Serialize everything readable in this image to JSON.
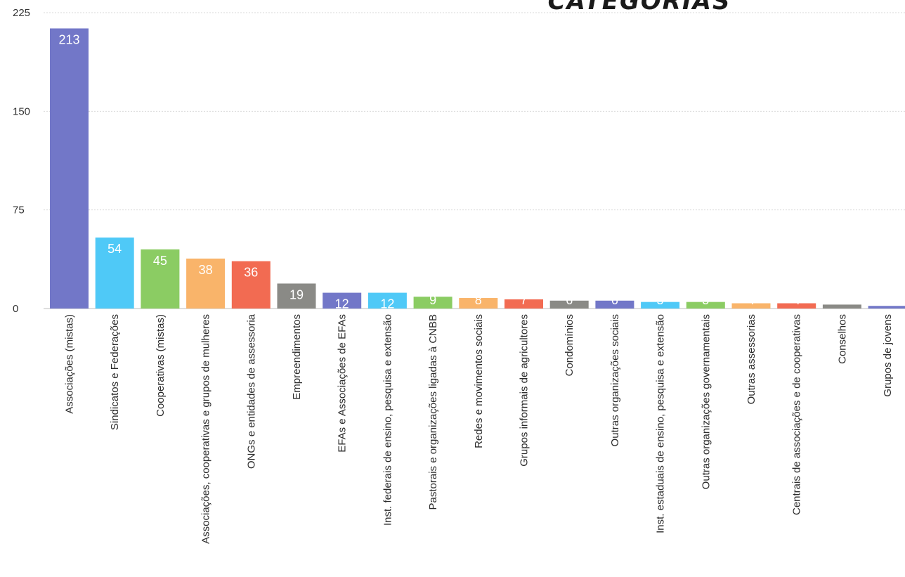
{
  "chart_data": {
    "type": "bar",
    "title": "CATEGORIAS",
    "xlabel": "",
    "ylabel": "",
    "ylim": [
      0,
      225
    ],
    "yticks": [
      0,
      75,
      150,
      225
    ],
    "grid": true,
    "categories": [
      "Associações (mistas)",
      "Sindicatos e Federações",
      "Cooperativas (mistas)",
      "Associações, cooperativas e grupos de mulheres",
      "ONGs e entidades de assessoria",
      "Empreendimentos",
      "EFAs e Associações de EFAs",
      "Inst. federais de ensino, pesquisa e extensão",
      "Pastorais e organizações ligadas à CNBB",
      "Redes e movimentos sociais",
      "Grupos informais de agricultores",
      "Condomínios",
      "Outras organizações sociais",
      "Inst. estaduais de ensino, pesquisa e extensão",
      "Outras organizações governamentais",
      "Outras assessorias",
      "Centrais de associações e de cooperativas",
      "Conselhos",
      "Grupos de jovens"
    ],
    "values": [
      213,
      54,
      45,
      38,
      36,
      19,
      12,
      12,
      9,
      8,
      7,
      6,
      6,
      5,
      5,
      4,
      4,
      3,
      2
    ],
    "colors": [
      "#7277c8",
      "#4fc9f7",
      "#8bcc63",
      "#f9b46a",
      "#f26b52",
      "#8a8a86",
      "#7277c8",
      "#4fc9f7",
      "#8bcc63",
      "#f9b46a",
      "#f26b52",
      "#8a8a86",
      "#7277c8",
      "#4fc9f7",
      "#8bcc63",
      "#f9b46a",
      "#f26b52",
      "#8a8a86",
      "#7277c8"
    ]
  }
}
